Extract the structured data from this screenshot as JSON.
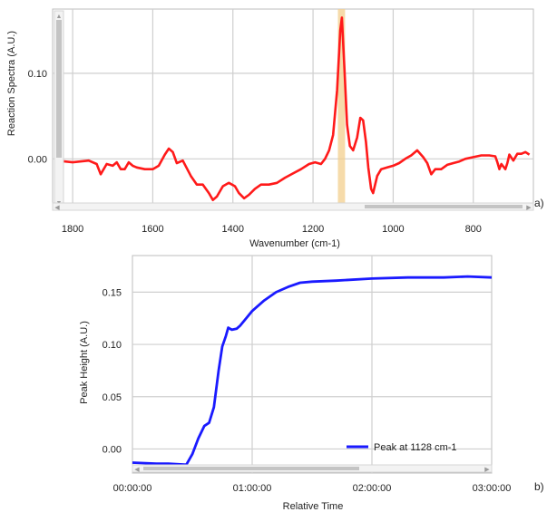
{
  "chart_data": [
    {
      "type": "line",
      "panel_label": "a)",
      "xlabel": "Wavenumber (cm-1)",
      "ylabel": "Reaction Spectra (A.U.)",
      "xlim": [
        1850,
        650
      ],
      "ylim": [
        -0.06,
        0.175
      ],
      "x_ticks": [
        "1800",
        "1600",
        "1400",
        "1200",
        "1000",
        "800"
      ],
      "y_ticks": [
        "0.00",
        "0.10"
      ],
      "grid": true,
      "highlight_band": [
        1138,
        1120
      ],
      "series": [
        {
          "color": "#ff1a1a",
          "x": [
            1840,
            1800,
            1760,
            1740,
            1730,
            1715,
            1700,
            1690,
            1680,
            1670,
            1660,
            1650,
            1640,
            1620,
            1600,
            1585,
            1570,
            1560,
            1550,
            1540,
            1525,
            1505,
            1490,
            1475,
            1460,
            1450,
            1440,
            1425,
            1410,
            1395,
            1385,
            1372,
            1360,
            1345,
            1330,
            1310,
            1290,
            1270,
            1250,
            1230,
            1210,
            1195,
            1180,
            1170,
            1160,
            1150,
            1140,
            1132,
            1128,
            1122,
            1115,
            1108,
            1100,
            1090,
            1082,
            1075,
            1068,
            1062,
            1055,
            1050,
            1040,
            1030,
            1015,
            1000,
            985,
            970,
            955,
            940,
            925,
            915,
            905,
            895,
            880,
            865,
            850,
            835,
            820,
            800,
            780,
            760,
            745,
            740,
            735,
            730,
            720,
            715,
            710,
            700,
            690,
            680,
            670,
            660
          ],
          "y": [
            -0.002,
            -0.004,
            -0.002,
            -0.006,
            -0.018,
            -0.006,
            -0.008,
            -0.004,
            -0.012,
            -0.012,
            -0.004,
            -0.008,
            -0.01,
            -0.012,
            -0.012,
            -0.008,
            0.005,
            0.012,
            0.008,
            -0.005,
            -0.002,
            -0.02,
            -0.03,
            -0.03,
            -0.04,
            -0.048,
            -0.044,
            -0.032,
            -0.028,
            -0.032,
            -0.04,
            -0.046,
            -0.042,
            -0.035,
            -0.03,
            -0.03,
            -0.028,
            -0.022,
            -0.017,
            -0.012,
            -0.006,
            -0.004,
            -0.006,
            0.0,
            0.01,
            0.028,
            0.08,
            0.15,
            0.165,
            0.11,
            0.04,
            0.015,
            0.01,
            0.025,
            0.048,
            0.045,
            0.02,
            -0.01,
            -0.035,
            -0.04,
            -0.02,
            -0.012,
            -0.01,
            -0.008,
            -0.005,
            0.0,
            0.004,
            0.01,
            0.002,
            -0.005,
            -0.018,
            -0.012,
            -0.012,
            -0.007,
            -0.005,
            -0.003,
            0.0,
            0.002,
            0.004,
            0.004,
            0.003,
            -0.004,
            -0.012,
            -0.006,
            -0.012,
            -0.005,
            0.005,
            -0.002,
            0.006,
            0.006,
            0.008,
            0.005
          ]
        }
      ]
    },
    {
      "type": "line",
      "panel_label": "b)",
      "xlabel": "Relative Time",
      "ylabel": "Peak Height (A.U.)",
      "xlim": [
        0,
        3
      ],
      "ylim": [
        -0.023,
        0.185
      ],
      "x_ticks": [
        "00:00:00",
        "01:00:00",
        "02:00:00",
        "03:00:00"
      ],
      "y_ticks": [
        "0.00",
        "0.05",
        "0.10",
        "0.15"
      ],
      "grid": true,
      "legend_position": "bottom-right",
      "series": [
        {
          "name": "Peak at 1128 cm-1",
          "color": "#1a1aff",
          "x": [
            0.0,
            0.2,
            0.3,
            0.45,
            0.5,
            0.55,
            0.6,
            0.64,
            0.68,
            0.72,
            0.75,
            0.78,
            0.8,
            0.83,
            0.87,
            0.9,
            0.95,
            1.0,
            1.1,
            1.2,
            1.3,
            1.4,
            1.5,
            1.7,
            2.0,
            2.3,
            2.6,
            2.8,
            3.0
          ],
          "y": [
            -0.013,
            -0.014,
            -0.014,
            -0.015,
            -0.005,
            0.01,
            0.022,
            0.025,
            0.04,
            0.075,
            0.098,
            0.108,
            0.116,
            0.114,
            0.115,
            0.118,
            0.125,
            0.132,
            0.142,
            0.15,
            0.155,
            0.159,
            0.16,
            0.161,
            0.163,
            0.164,
            0.164,
            0.165,
            0.164
          ]
        }
      ]
    }
  ]
}
